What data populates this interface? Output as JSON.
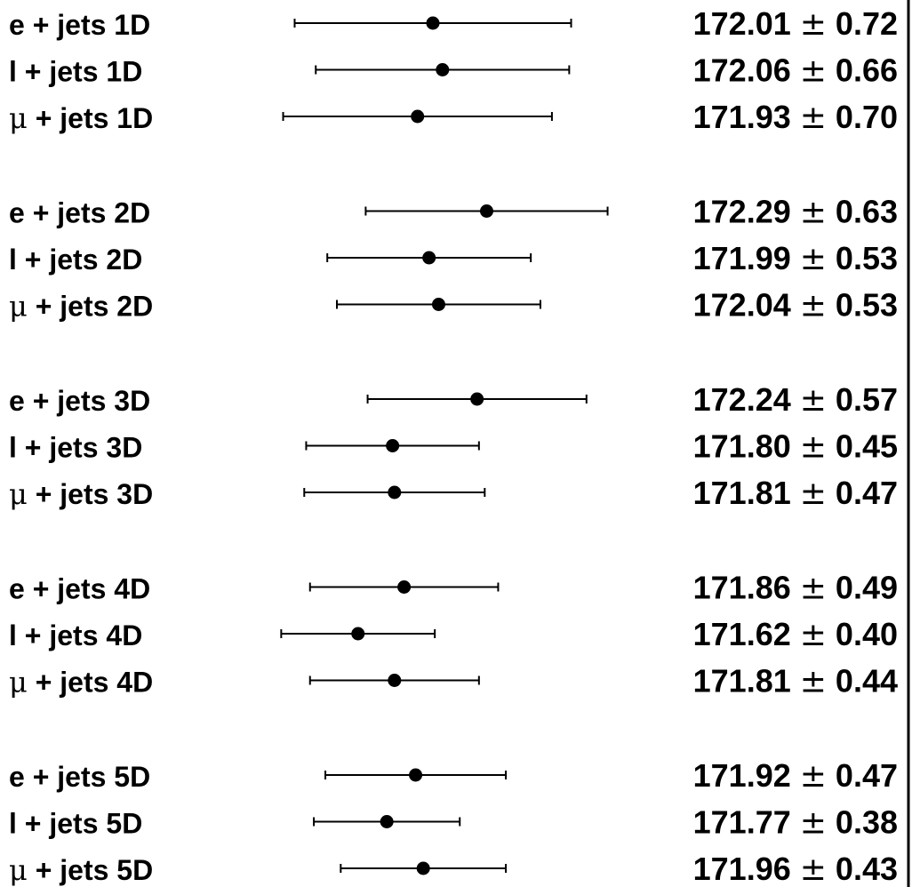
{
  "chart_data": {
    "type": "scatter",
    "title": "",
    "xlabel": "",
    "ylabel": "",
    "xlim": [
      171.0,
      172.85
    ],
    "error_bar_style": "horizontal, capped",
    "marker": "filled-circle",
    "point_color": "#000000",
    "grid": false,
    "legend": "none",
    "plus_minus": "±",
    "rows": [
      {
        "label": "e + jets 1D",
        "value": 172.01,
        "error": 0.72,
        "value_text": "172.01",
        "error_text": "0.72"
      },
      {
        "label": "l + jets 1D",
        "value": 172.06,
        "error": 0.66,
        "value_text": "172.06",
        "error_text": "0.66"
      },
      {
        "label": "μ + jets 1D",
        "value": 171.93,
        "error": 0.7,
        "value_text": "171.93",
        "error_text": "0.70"
      },
      {
        "label": "e + jets 2D",
        "value": 172.29,
        "error": 0.63,
        "value_text": "172.29",
        "error_text": "0.63"
      },
      {
        "label": "l + jets 2D",
        "value": 171.99,
        "error": 0.53,
        "value_text": "171.99",
        "error_text": "0.53"
      },
      {
        "label": "μ + jets 2D",
        "value": 172.04,
        "error": 0.53,
        "value_text": "172.04",
        "error_text": "0.53"
      },
      {
        "label": "e + jets 3D",
        "value": 172.24,
        "error": 0.57,
        "value_text": "172.24",
        "error_text": "0.57"
      },
      {
        "label": "l + jets 3D",
        "value": 171.8,
        "error": 0.45,
        "value_text": "171.80",
        "error_text": "0.45"
      },
      {
        "label": "μ + jets 3D",
        "value": 171.81,
        "error": 0.47,
        "value_text": "171.81",
        "error_text": "0.47"
      },
      {
        "label": "e + jets 4D",
        "value": 171.86,
        "error": 0.49,
        "value_text": "171.86",
        "error_text": "0.49"
      },
      {
        "label": "l + jets 4D",
        "value": 171.62,
        "error": 0.4,
        "value_text": "171.62",
        "error_text": "0.40"
      },
      {
        "label": "μ + jets 4D",
        "value": 171.81,
        "error": 0.44,
        "value_text": "171.81",
        "error_text": "0.44"
      },
      {
        "label": "e + jets 5D",
        "value": 171.92,
        "error": 0.47,
        "value_text": "171.92",
        "error_text": "0.47"
      },
      {
        "label": "l + jets 5D",
        "value": 171.77,
        "error": 0.38,
        "value_text": "171.77",
        "error_text": "0.38"
      },
      {
        "label": "μ + jets 5D",
        "value": 171.96,
        "error": 0.43,
        "value_text": "171.96",
        "error_text": "0.43"
      }
    ]
  }
}
